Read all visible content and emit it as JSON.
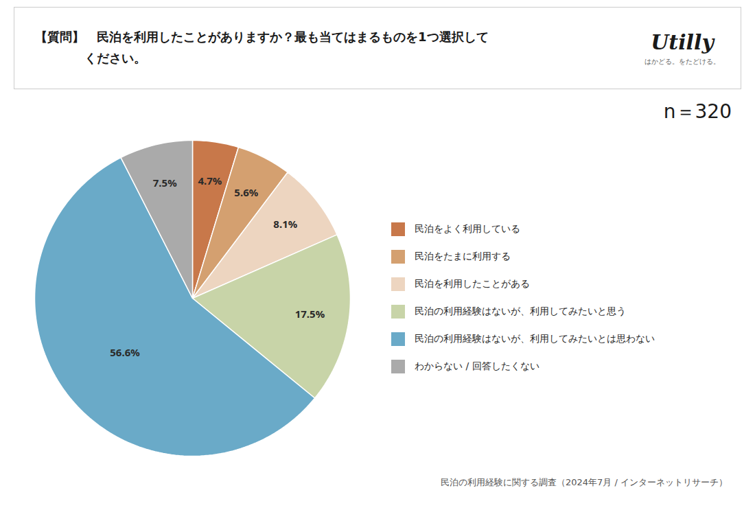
{
  "chart_data": {
    "type": "pie",
    "title": "【質問】　民泊を利用したことがありますか？最も当てはまるものを1つ選択して\n　　　　ください。",
    "categories": [
      "民泊をよく利用している",
      "民泊をたまに利用する",
      "民泊を利用したことがある",
      "民泊の利用経験はないが、利用してみたいと思う",
      "民泊の利用経験はないが、利用してみたいとは思わない",
      "わからない / 回答したくない"
    ],
    "values": [
      4.7,
      5.6,
      8.1,
      17.5,
      56.6,
      7.5
    ],
    "value_labels": [
      "4.7%",
      "5.6%",
      "8.1%",
      "17.5%",
      "56.6%",
      "7.5%"
    ],
    "colors": [
      "#C8784A",
      "#D4A070",
      "#EDD5C0",
      "#C8D4A8",
      "#6AAAC8",
      "#AAAAAA"
    ],
    "data_labels": true,
    "legend": "right",
    "annotations": [
      "Utilly",
      "はかどる。をたどける。",
      "n＝320",
      "民泊の利用経験に関する調査（2024年7月 / インターネットリサーチ）"
    ]
  }
}
